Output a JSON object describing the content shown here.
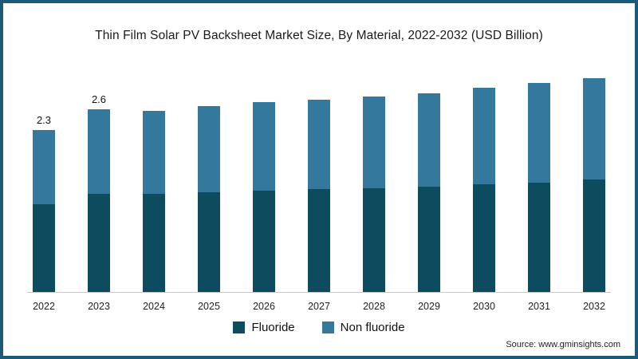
{
  "chart_data": {
    "type": "bar",
    "stacked": true,
    "title": "Thin Film Solar PV Backsheet Market Size, By Material, 2022-2032 (USD Billion)",
    "categories": [
      "2022",
      "2023",
      "2024",
      "2025",
      "2026",
      "2027",
      "2028",
      "2029",
      "2030",
      "2031",
      "2032"
    ],
    "series": [
      {
        "name": "Fluoride",
        "color": "#0d4b5f",
        "values": [
          1.25,
          1.4,
          1.4,
          1.42,
          1.44,
          1.46,
          1.48,
          1.5,
          1.53,
          1.56,
          1.6
        ]
      },
      {
        "name": "Non fluoride",
        "color": "#34789e",
        "values": [
          1.05,
          1.2,
          1.18,
          1.22,
          1.26,
          1.27,
          1.3,
          1.33,
          1.38,
          1.41,
          1.44
        ]
      }
    ],
    "data_labels": [
      "2.3",
      "2.6",
      "",
      "",
      "",
      "",
      "",
      "",
      "",
      "",
      ""
    ],
    "xlabel": "",
    "ylabel": "",
    "ylim": [
      0,
      3.2
    ],
    "grid": false,
    "legend_position": "bottom"
  },
  "source": {
    "text": "Source: www.gminsights.com"
  },
  "frame": {
    "border_color": "#1c5a7a"
  }
}
